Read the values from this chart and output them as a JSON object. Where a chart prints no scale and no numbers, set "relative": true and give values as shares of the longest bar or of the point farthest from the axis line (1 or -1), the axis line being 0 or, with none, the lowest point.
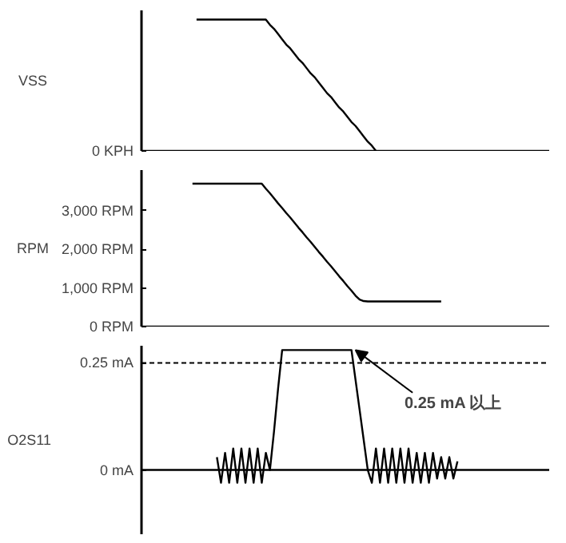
{
  "chart_data": [
    {
      "type": "line",
      "ylabel": "VSS",
      "relative": true,
      "tick_labels": "y",
      "annotations": [
        "0 KPH"
      ],
      "categories": [
        null,
        null,
        null,
        null,
        null,
        null,
        null,
        null,
        null,
        null,
        null,
        null,
        null,
        null,
        null,
        null,
        null,
        null,
        null,
        null,
        null,
        null,
        null,
        null,
        null,
        null,
        null,
        null,
        null,
        null,
        null,
        null,
        null,
        null,
        null,
        null,
        null,
        null,
        null,
        null,
        null,
        null,
        null,
        null,
        null,
        null,
        null,
        null,
        null,
        null,
        null,
        null,
        null,
        null,
        null,
        null,
        null,
        null,
        null,
        null,
        null,
        null,
        null,
        null,
        null,
        null,
        null,
        null,
        null,
        null,
        null,
        null,
        null,
        null,
        null,
        null,
        null,
        null,
        null,
        null,
        null,
        null,
        null,
        null,
        null,
        null,
        null,
        null,
        null,
        null,
        null,
        null,
        null,
        null,
        null,
        null,
        null,
        null,
        null,
        null
      ],
      "series": [
        {
          "color": "#000000",
          "values": [
            null,
            null,
            null,
            null,
            null,
            null,
            null,
            null,
            null,
            null,
            null,
            null,
            null,
            1,
            1,
            1,
            1,
            1,
            1,
            1,
            1,
            1,
            1,
            1,
            1,
            1,
            1,
            1,
            1,
            1,
            1,
            0.96,
            0.93,
            0.89,
            0.85,
            0.81,
            0.78,
            0.74,
            0.7,
            0.67,
            0.63,
            0.59,
            0.56,
            0.52,
            0.48,
            0.44,
            0.41,
            0.37,
            0.33,
            0.3,
            0.26,
            0.22,
            0.19,
            0.15,
            0.11,
            0.07,
            0.04,
            0,
            null,
            null,
            null,
            null,
            null,
            null,
            null,
            null,
            null,
            null,
            null,
            null,
            null,
            null,
            null,
            null,
            null,
            null,
            null,
            null,
            null,
            null,
            null,
            null,
            null,
            null,
            null,
            null,
            null,
            null,
            null,
            null,
            null,
            null,
            null,
            null,
            null,
            null,
            null,
            null,
            null,
            null
          ]
        }
      ]
    },
    {
      "type": "line",
      "ylabel": "RPM",
      "ylim": [
        0,
        4050
      ],
      "tick_labels": "y",
      "yticks": [
        {
          "value": 0,
          "label": "0 RPM"
        },
        {
          "value": 1000,
          "label": "1,000 RPM"
        },
        {
          "value": 2000,
          "label": "2,000 RPM"
        },
        {
          "value": 3000,
          "label": "3,000 RPM"
        }
      ],
      "categories": [
        null,
        null,
        null,
        null,
        null,
        null,
        null,
        null,
        null,
        null,
        null,
        null,
        null,
        null,
        null,
        null,
        null,
        null,
        null,
        null,
        null,
        null,
        null,
        null,
        null,
        null,
        null,
        null,
        null,
        null,
        null,
        null,
        null,
        null,
        null,
        null,
        null,
        null,
        null,
        null,
        null,
        null,
        null,
        null,
        null,
        null,
        null,
        null,
        null,
        null,
        null,
        null,
        null,
        null,
        null,
        null,
        null,
        null,
        null,
        null,
        null,
        null,
        null,
        null,
        null,
        null,
        null,
        null,
        null,
        null,
        null,
        null,
        null,
        null,
        null,
        null,
        null,
        null,
        null,
        null,
        null,
        null,
        null,
        null,
        null,
        null,
        null,
        null,
        null,
        null,
        null,
        null,
        null,
        null,
        null,
        null,
        null,
        null,
        null,
        null
      ],
      "series": [
        {
          "color": "#000000",
          "values": [
            null,
            null,
            null,
            null,
            null,
            null,
            null,
            null,
            null,
            null,
            null,
            null,
            3700,
            3700,
            3700,
            3700,
            3700,
            3700,
            3700,
            3700,
            3700,
            3700,
            3700,
            3700,
            3700,
            3700,
            3700,
            3700,
            3700,
            3700,
            3570,
            3450,
            3320,
            3190,
            3070,
            2940,
            2820,
            2690,
            2560,
            2440,
            2310,
            2190,
            2060,
            1930,
            1810,
            1680,
            1560,
            1430,
            1300,
            1180,
            1050,
            930,
            800,
            700,
            660,
            650,
            650,
            650,
            650,
            650,
            650,
            650,
            650,
            650,
            650,
            650,
            650,
            650,
            650,
            650,
            650,
            650,
            650,
            650,
            null,
            null,
            null,
            null,
            null,
            null,
            null,
            null,
            null,
            null,
            null,
            null,
            null,
            null,
            null,
            null,
            null,
            null,
            null,
            null,
            null,
            null,
            null,
            null,
            null,
            null
          ]
        }
      ]
    },
    {
      "type": "line",
      "ylabel": "O2S11",
      "ylim": [
        -0.15,
        0.29
      ],
      "tick_labels": "y",
      "yticks": [
        {
          "value": 0,
          "label": "0 mA"
        },
        {
          "value": 0.25,
          "label": "0.25 mA"
        }
      ],
      "ref_lines": [
        {
          "axis": "y",
          "value": 0.25,
          "line_style": "dashed"
        }
      ],
      "annotations": [
        "0.25 mA 以上"
      ],
      "categories": [
        null,
        null,
        null,
        null,
        null,
        null,
        null,
        null,
        null,
        null,
        null,
        null,
        null,
        null,
        null,
        null,
        null,
        null,
        null,
        null,
        null,
        null,
        null,
        null,
        null,
        null,
        null,
        null,
        null,
        null,
        null,
        null,
        null,
        null,
        null,
        null,
        null,
        null,
        null,
        null,
        null,
        null,
        null,
        null,
        null,
        null,
        null,
        null,
        null,
        null,
        null,
        null,
        null,
        null,
        null,
        null,
        null,
        null,
        null,
        null,
        null,
        null,
        null,
        null,
        null,
        null,
        null,
        null,
        null,
        null,
        null,
        null,
        null,
        null,
        null,
        null,
        null,
        null,
        null,
        null,
        null,
        null,
        null,
        null,
        null,
        null,
        null,
        null,
        null,
        null,
        null,
        null,
        null,
        null,
        null,
        null,
        null,
        null,
        null,
        null
      ],
      "series": [
        {
          "color": "#000000",
          "values": [
            null,
            null,
            null,
            null,
            null,
            null,
            null,
            null,
            null,
            null,
            null,
            null,
            null,
            null,
            null,
            null,
            null,
            null,
            0.03,
            -0.03,
            0.04,
            -0.03,
            0.05,
            -0.03,
            0.05,
            -0.03,
            0.05,
            -0.03,
            0.05,
            -0.03,
            0.04,
            0,
            0.09,
            0.19,
            0.28,
            0.28,
            0.28,
            0.28,
            0.28,
            0.28,
            0.28,
            0.28,
            0.28,
            0.28,
            0.28,
            0.28,
            0.28,
            0.28,
            0.28,
            0.28,
            0.28,
            0.28,
            0.21,
            0.14,
            0.07,
            0,
            -0.03,
            0.05,
            -0.03,
            0.05,
            -0.03,
            0.05,
            -0.03,
            0.05,
            -0.03,
            0.05,
            -0.03,
            0.04,
            -0.03,
            0.04,
            -0.03,
            0.04,
            -0.02,
            0.03,
            -0.02,
            0.03,
            -0.02,
            0.02,
            null,
            null,
            null,
            null,
            null,
            null,
            null,
            null,
            null,
            null,
            null,
            null,
            null,
            null,
            null,
            null,
            null,
            null,
            null,
            null,
            null,
            null
          ]
        }
      ]
    }
  ]
}
